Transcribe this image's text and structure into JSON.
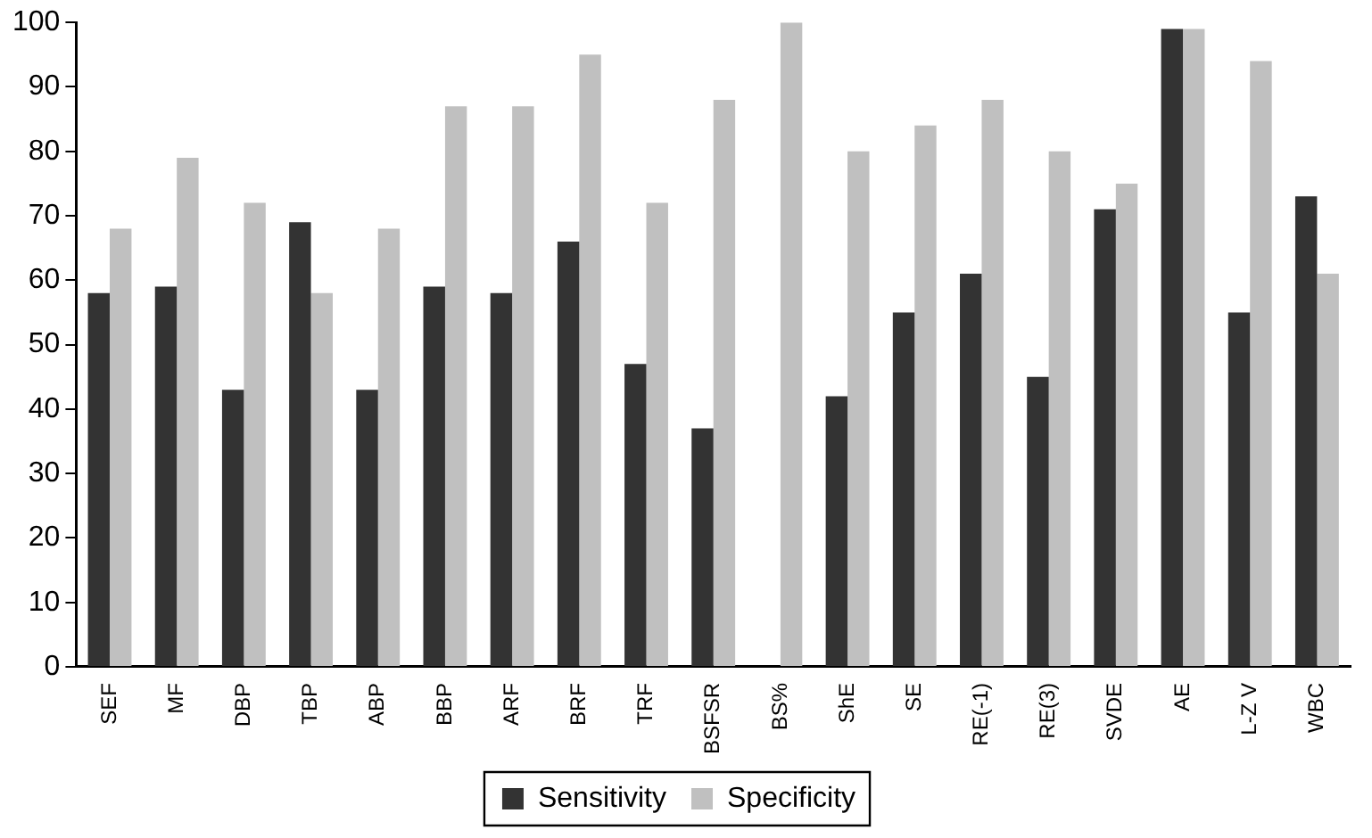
{
  "chart_data": {
    "type": "bar",
    "categories": [
      "SEF",
      "MF",
      "DBP",
      "TBP",
      "ABP",
      "BBP",
      "ARF",
      "BRF",
      "TRF",
      "BSFSR",
      "BS%",
      "ShE",
      "SE",
      "RE(-1)",
      "RE(3)",
      "SVDE",
      "AE",
      "L-Z V",
      "WBC"
    ],
    "series": [
      {
        "name": "Sensitivity",
        "color": "#333333",
        "values": [
          58,
          59,
          43,
          69,
          43,
          59,
          58,
          66,
          47,
          37,
          0,
          42,
          55,
          61,
          45,
          71,
          99,
          55,
          73
        ]
      },
      {
        "name": "Specificity",
        "color": "#c0c0c0",
        "values": [
          68,
          79,
          72,
          58,
          68,
          87,
          87,
          95,
          72,
          88,
          100,
          80,
          84,
          88,
          80,
          75,
          99,
          94,
          61
        ]
      }
    ],
    "ylim": [
      0,
      100
    ],
    "yticks": [
      0,
      10,
      20,
      30,
      40,
      50,
      60,
      70,
      80,
      90,
      100
    ],
    "grid": false,
    "legend": "bottom"
  }
}
